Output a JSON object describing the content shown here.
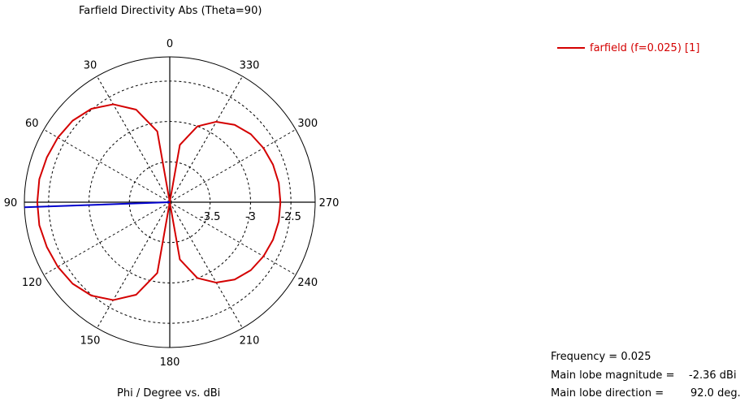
{
  "chart_data": {
    "type": "polar-line",
    "title": "Farfield Directivity Abs (Theta=90)",
    "xlabel": "Phi / Degree vs. dBi",
    "angle_ticks": [
      "0",
      "30",
      "60",
      "90",
      "120",
      "150",
      "180",
      "210",
      "240",
      "270",
      "300",
      "330"
    ],
    "radial_ticks": [
      "-3.5",
      "-3",
      "-2.5"
    ],
    "radial_range": [
      -4.0,
      -2.2
    ],
    "radial_grid_values": [
      -3.5,
      -3.0,
      -2.5
    ],
    "angle_direction": "counterclockwise",
    "zero_at": "top",
    "series": [
      {
        "name": "farfield (f=0.025) [1]",
        "color": "#d40000",
        "phi_deg": [
          0,
          10,
          20,
          30,
          40,
          50,
          60,
          70,
          80,
          90,
          100,
          110,
          120,
          130,
          140,
          150,
          160,
          170,
          180,
          190,
          200,
          210,
          220,
          230,
          240,
          250,
          260,
          270,
          280,
          290,
          300,
          310,
          320,
          330,
          340,
          350,
          360
        ],
        "dbi": [
          -4.0,
          -3.11,
          -2.78,
          -2.6,
          -2.49,
          -2.43,
          -2.4,
          -2.38,
          -2.36,
          -2.36,
          -2.36,
          -2.38,
          -2.4,
          -2.43,
          -2.49,
          -2.6,
          -2.78,
          -3.11,
          -4.0,
          -3.28,
          -3.0,
          -2.85,
          -2.75,
          -2.69,
          -2.66,
          -2.64,
          -2.63,
          -2.63,
          -2.63,
          -2.64,
          -2.66,
          -2.69,
          -2.75,
          -2.85,
          -3.0,
          -3.28,
          -4.0
        ]
      }
    ],
    "main_lobe_direction_deg": 92.0
  },
  "info": {
    "frequency_label": "Frequency = 0.025",
    "magnitude_label": "Main lobe magnitude =",
    "magnitude_value": "-2.36 dBi",
    "direction_label": "Main lobe direction =",
    "direction_value": "92.0 deg."
  },
  "colors": {
    "series": "#d40000",
    "main_lobe": "#0000cc",
    "grid": "#000000"
  }
}
